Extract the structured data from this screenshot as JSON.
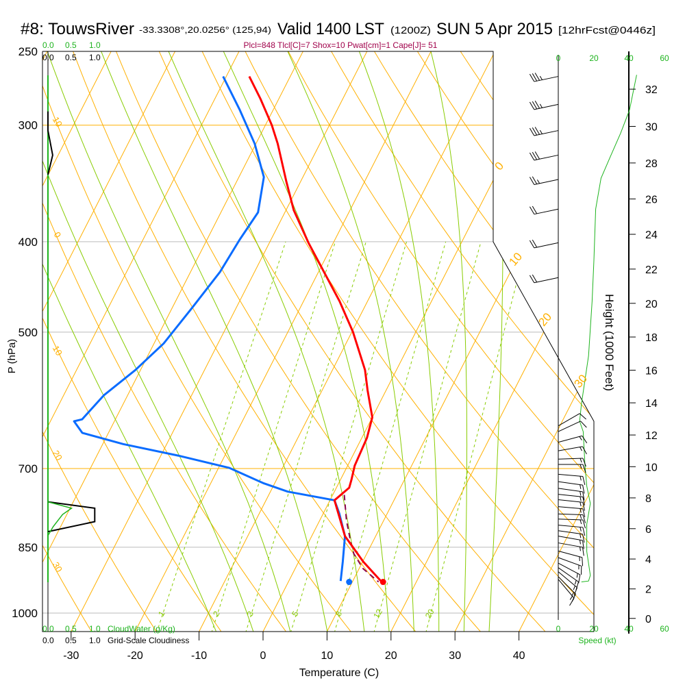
{
  "header": {
    "station": "#8: TouwsRiver",
    "coords": "-33.3308°,20.0256° (125,94)",
    "valid": "Valid 1400 LST",
    "zulu": "(1200Z)",
    "date": "SUN 5 Apr 2015",
    "forecast": "[12hrFcst@0446z]",
    "indices": "Plcl=848 Tlcl[C]=7 Shox=10 Pwat[cm]=1 Cape[J]= 51"
  },
  "colors": {
    "temperature": "#ff0000",
    "dewpoint": "#0a6cff",
    "parcel": "#8b0050",
    "isotherm": "#ffb000",
    "moist_adiabat": "#88cc00",
    "speed": "#1db31d",
    "indices": "#a0004a"
  },
  "cloud_panel": {
    "top_green": [
      "0.0",
      "0.5",
      "1.0"
    ],
    "top_black": [
      "0.0",
      "0.5",
      "1.0"
    ],
    "bottom_green": [
      "0.0",
      "0.5",
      "1.0"
    ],
    "bottom_green_label": "CloudWater (g/Kg)",
    "bottom_black": [
      "0.0",
      "0.5",
      "1.0"
    ],
    "bottom_black_label": "Grid-Scale Cloudiness"
  },
  "speed_panel": {
    "top_ticks": [
      "0",
      "20",
      "40",
      "60"
    ],
    "bottom_ticks": [
      "0",
      "20",
      "40",
      "60"
    ],
    "label": "Speed (kt)"
  },
  "chart_data": {
    "type": "line",
    "title": "#8: TouwsRiver Valid 1400 LST SUN 5 Apr 2015",
    "xlabel": "Temperature (C)",
    "ylabel": "P (hPa)",
    "y2label": "Height (1000 Feet)",
    "pressure_ticks": [
      "250",
      "300",
      "400",
      "500",
      "700",
      "850",
      "1000"
    ],
    "temperature_ticks": [
      "-30",
      "-20",
      "-10",
      "0",
      "10",
      "20",
      "30",
      "40"
    ],
    "height_ticks": [
      "0",
      "2",
      "4",
      "6",
      "8",
      "10",
      "12",
      "14",
      "16",
      "18",
      "20",
      "22",
      "24",
      "26",
      "28",
      "30",
      "32"
    ],
    "isotherm_labels": [
      "0",
      "10",
      "20",
      "30"
    ],
    "dry_adiabat_labels": [
      "10",
      "0",
      "10",
      "20",
      "30"
    ],
    "mixing_ratio_labels": [
      "1",
      "2",
      "3",
      "5",
      "8",
      "12",
      "20"
    ],
    "ylim_hpa": [
      1050,
      250
    ],
    "temperature": [
      [
        266,
        -46.4
      ],
      [
        281,
        -42.9
      ],
      [
        300,
        -39.0
      ],
      [
        314,
        -36.6
      ],
      [
        345,
        -32.2
      ],
      [
        370,
        -28.8
      ],
      [
        401,
        -23.9
      ],
      [
        428,
        -19.6
      ],
      [
        463,
        -14.4
      ],
      [
        500,
        -9.8
      ],
      [
        549,
        -4.9
      ],
      [
        577,
        -2.9
      ],
      [
        617,
        0.0
      ],
      [
        649,
        0.8
      ],
      [
        695,
        1.1
      ],
      [
        719,
        1.7
      ],
      [
        734,
        2.0
      ],
      [
        757,
        0.7
      ],
      [
        827,
        5.2
      ],
      [
        881,
        10.1
      ],
      [
        923,
        14.3
      ]
    ],
    "dewpoint": [
      [
        266,
        -50.5
      ],
      [
        289,
        -45.2
      ],
      [
        314,
        -40.2
      ],
      [
        341,
        -36.1
      ],
      [
        372,
        -34.2
      ],
      [
        398,
        -34.9
      ],
      [
        431,
        -35.4
      ],
      [
        471,
        -36.9
      ],
      [
        514,
        -38.5
      ],
      [
        549,
        -40.8
      ],
      [
        584,
        -43.7
      ],
      [
        620,
        -45.2
      ],
      [
        623,
        -46.3
      ],
      [
        641,
        -44.1
      ],
      [
        659,
        -36.8
      ],
      [
        678,
        -27.3
      ],
      [
        699,
        -18.3
      ],
      [
        726,
        -11.7
      ],
      [
        741,
        -7.3
      ],
      [
        757,
        0.7
      ],
      [
        782,
        2.5
      ],
      [
        827,
        5.2
      ],
      [
        881,
        6.9
      ],
      [
        924,
        8.1
      ]
    ],
    "parcel": [
      [
        747,
        1.8
      ],
      [
        796,
        4.2
      ],
      [
        838,
        6.5
      ],
      [
        864,
        8.0
      ],
      [
        896,
        10.6
      ],
      [
        926,
        14.1
      ]
    ],
    "surface": {
      "pressure": 926,
      "temperature": 14.8,
      "dewpoint": 9.5
    },
    "cloudiness": [
      [
        290,
        0
      ],
      [
        304,
        0
      ],
      [
        323,
        0.1
      ],
      [
        339,
        0
      ],
      [
        760,
        0
      ],
      [
        772,
        0.99
      ],
      [
        798,
        0.99
      ],
      [
        818,
        0
      ]
    ],
    "cloud_water": [
      [
        760,
        0
      ],
      [
        772,
        0.5
      ],
      [
        784,
        0.31
      ],
      [
        808,
        0.11
      ],
      [
        826,
        0
      ]
    ],
    "wind_speed_kt": [
      [
        265,
        44
      ],
      [
        289,
        40
      ],
      [
        306,
        35
      ],
      [
        325,
        29
      ],
      [
        342,
        24
      ],
      [
        369,
        21
      ],
      [
        419,
        20
      ],
      [
        463,
        19
      ],
      [
        530,
        17
      ],
      [
        597,
        13
      ],
      [
        623,
        12
      ],
      [
        639,
        14
      ],
      [
        695,
        15
      ],
      [
        731,
        16
      ],
      [
        763,
        18
      ],
      [
        803,
        16
      ],
      [
        859,
        16
      ],
      [
        911,
        18
      ],
      [
        924,
        17
      ],
      [
        926,
        13
      ]
    ],
    "wind_barbs": [
      [
        266,
        258,
        35
      ],
      [
        285,
        258,
        35
      ],
      [
        304,
        258,
        35
      ],
      [
        323,
        258,
        30
      ],
      [
        343,
        258,
        25
      ],
      [
        369,
        258,
        20
      ],
      [
        401,
        258,
        20
      ],
      [
        437,
        258,
        20
      ],
      [
        630,
        60,
        10
      ],
      [
        639,
        65,
        10
      ],
      [
        656,
        75,
        15
      ],
      [
        670,
        80,
        15
      ],
      [
        684,
        88,
        15
      ],
      [
        693,
        90,
        15
      ],
      [
        710,
        95,
        15
      ],
      [
        723,
        98,
        15
      ],
      [
        735,
        98,
        15
      ],
      [
        746,
        96,
        15
      ],
      [
        756,
        96,
        15
      ],
      [
        769,
        95,
        15
      ],
      [
        783,
        92,
        15
      ],
      [
        793,
        92,
        15
      ],
      [
        805,
        95,
        15
      ],
      [
        816,
        98,
        15
      ],
      [
        827,
        100,
        15
      ],
      [
        841,
        100,
        15
      ],
      [
        858,
        105,
        15
      ],
      [
        872,
        110,
        15
      ],
      [
        884,
        118,
        15
      ],
      [
        894,
        125,
        15
      ],
      [
        903,
        130,
        15
      ],
      [
        914,
        135,
        15
      ],
      [
        920,
        140,
        15
      ]
    ]
  }
}
